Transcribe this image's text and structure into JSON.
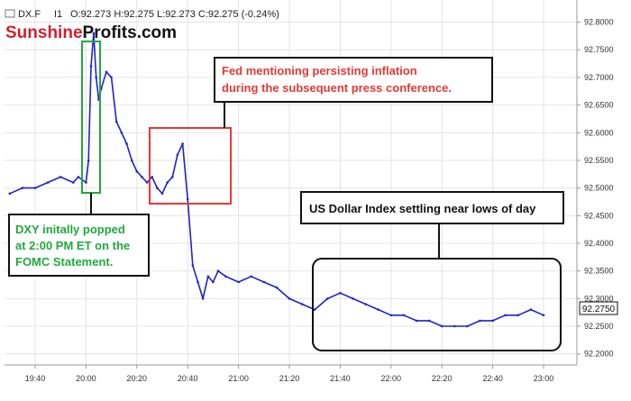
{
  "header": {
    "symbol": "DX.F",
    "interval": "I1",
    "ohlc_text": "O:92.273  H:92.275  L:92.273  C:92.275  (-0.24%)"
  },
  "watermark": {
    "part1": "Sunshine",
    "part2": "Profits",
    "part3": ".com",
    "color1": "#d2202f",
    "color2": "#111111"
  },
  "colors": {
    "series": "#2222cc",
    "green_box": "#1faa3c",
    "red_box": "#e53935",
    "red_text": "#e53935",
    "green_text": "#1faa3c",
    "grid": "#e4e4e4"
  },
  "annotations": {
    "green_lines": [
      "DXY initally popped",
      "at 2:00 PM ET on the",
      "FOMC Statement."
    ],
    "red_lines": [
      "Fed mentioning persisting inflation",
      "during the subsequent press conference."
    ],
    "black_line": "US Dollar Index settling near lows of day"
  },
  "price_label": "92.2750",
  "chart_data": {
    "type": "line",
    "title": "",
    "xlabel": "",
    "ylabel": "",
    "x_ticks": [
      "19:40",
      "20:00",
      "20:20",
      "20:40",
      "21:00",
      "21:20",
      "21:40",
      "22:00",
      "22:20",
      "22:40",
      "23:00"
    ],
    "y_ticks": [
      "92.2000",
      "92.2500",
      "92.3000",
      "92.3500",
      "92.4000",
      "92.4500",
      "92.5000",
      "92.5500",
      "92.6000",
      "92.6500",
      "92.7000",
      "92.7500",
      "92.8000"
    ],
    "ylim": [
      92.18,
      92.84
    ],
    "grid": true,
    "series": [
      {
        "x": [
          "19:30",
          "19:35",
          "19:40",
          "19:45",
          "19:50",
          "19:55",
          "19:57",
          "20:00",
          "20:01",
          "20:02",
          "20:03",
          "20:04",
          "20:05",
          "20:06",
          "20:08",
          "20:10",
          "20:12",
          "20:14",
          "20:16",
          "20:18",
          "20:20",
          "20:22",
          "20:24",
          "20:26",
          "20:28",
          "20:30",
          "20:32",
          "20:34",
          "20:36",
          "20:38",
          "20:40",
          "20:42",
          "20:44",
          "20:46",
          "20:48",
          "20:50",
          "20:52",
          "20:55",
          "21:00",
          "21:05",
          "21:10",
          "21:15",
          "21:20",
          "21:25",
          "21:30",
          "21:35",
          "21:40",
          "21:45",
          "21:50",
          "21:55",
          "22:00",
          "22:05",
          "22:10",
          "22:15",
          "22:20",
          "22:25",
          "22:30",
          "22:35",
          "22:40",
          "22:45",
          "22:50",
          "22:55",
          "23:00"
        ],
        "y": [
          92.49,
          92.5,
          92.5,
          92.51,
          92.52,
          92.51,
          92.52,
          92.51,
          92.55,
          92.72,
          92.78,
          92.7,
          92.66,
          92.68,
          92.71,
          92.7,
          92.62,
          92.6,
          92.58,
          92.55,
          92.53,
          92.52,
          92.51,
          92.52,
          92.5,
          92.49,
          92.51,
          92.52,
          92.56,
          92.58,
          92.48,
          92.36,
          92.33,
          92.3,
          92.34,
          92.33,
          92.35,
          92.34,
          92.33,
          92.34,
          92.33,
          92.32,
          92.3,
          92.29,
          92.28,
          92.3,
          92.31,
          92.3,
          92.29,
          92.28,
          92.27,
          92.27,
          92.26,
          92.26,
          92.25,
          92.25,
          92.25,
          92.26,
          92.26,
          92.27,
          92.27,
          92.28,
          92.27
        ]
      }
    ]
  }
}
